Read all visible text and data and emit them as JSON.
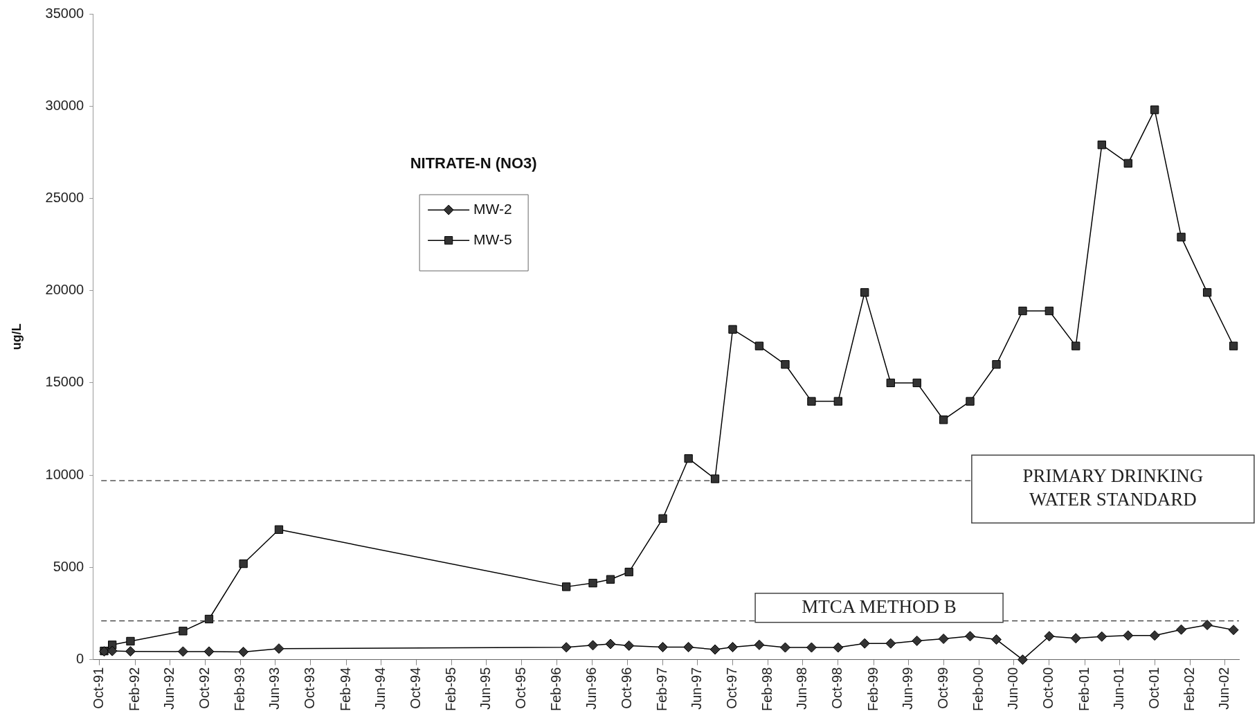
{
  "chart_data": {
    "type": "line",
    "title": "NITRATE-N (NO3)",
    "ylabel": "ug/L",
    "x": [
      "1991-10-17",
      "1991-11-14",
      "1992-01-16",
      "1992-07-16",
      "1992-10-14",
      "1993-02-10",
      "1993-06-13",
      "1996-03-04",
      "1996-06-04",
      "1996-08-04",
      "1996-10-07",
      "1997-02-01",
      "1997-05-01",
      "1997-08-01",
      "1997-10-01",
      "1998-01-01",
      "1998-04-01",
      "1998-07-01",
      "1998-10-01",
      "1999-01-01",
      "1999-04-01",
      "1999-07-01",
      "1999-10-01",
      "2000-01-01",
      "2000-04-01",
      "2000-07-01",
      "2000-10-01",
      "2001-01-01",
      "2001-04-01",
      "2001-07-01",
      "2001-10-01",
      "2002-01-01",
      "2002-04-01",
      "2002-07-01"
    ],
    "series": [
      {
        "name": "MW-2",
        "color": "#333333",
        "marker": "diamond",
        "values": [
          450,
          470,
          450,
          440,
          440,
          420,
          600,
          670,
          780,
          850,
          760,
          680,
          680,
          550,
          680,
          800,
          660,
          660,
          660,
          880,
          880,
          1020,
          1130,
          1270,
          1090,
          0,
          1270,
          1160,
          1250,
          1310,
          1310,
          1630,
          1880,
          1610
        ]
      },
      {
        "name": "MW-5",
        "color": "#333333",
        "marker": "square",
        "values": [
          470,
          800,
          1000,
          1550,
          2200,
          5200,
          7050,
          3950,
          4150,
          4350,
          4750,
          7650,
          10900,
          9800,
          17900,
          17000,
          16000,
          14000,
          14000,
          19900,
          15000,
          15000,
          13000,
          14000,
          16000,
          18900,
          18900,
          17000,
          27900,
          26900,
          29800,
          22900,
          19900,
          17000
        ]
      }
    ],
    "xlim": [
      "1991-09-08",
      "2002-07-20"
    ],
    "xticks": [
      {
        "value": "1991-10-01",
        "label": "Oct-91"
      },
      {
        "value": "1992-02-01",
        "label": "Feb-92"
      },
      {
        "value": "1992-06-01",
        "label": "Jun-92"
      },
      {
        "value": "1992-10-01",
        "label": "Oct-92"
      },
      {
        "value": "1993-02-01",
        "label": "Feb-93"
      },
      {
        "value": "1993-06-01",
        "label": "Jun-93"
      },
      {
        "value": "1993-10-01",
        "label": "Oct-93"
      },
      {
        "value": "1994-02-01",
        "label": "Feb-94"
      },
      {
        "value": "1994-06-01",
        "label": "Jun-94"
      },
      {
        "value": "1994-10-01",
        "label": "Oct-94"
      },
      {
        "value": "1995-02-01",
        "label": "Feb-95"
      },
      {
        "value": "1995-06-01",
        "label": "Jun-95"
      },
      {
        "value": "1995-10-01",
        "label": "Oct-95"
      },
      {
        "value": "1996-02-01",
        "label": "Feb-96"
      },
      {
        "value": "1996-06-01",
        "label": "Jun-96"
      },
      {
        "value": "1996-10-01",
        "label": "Oct-96"
      },
      {
        "value": "1997-02-01",
        "label": "Feb-97"
      },
      {
        "value": "1997-06-01",
        "label": "Jun-97"
      },
      {
        "value": "1997-10-01",
        "label": "Oct-97"
      },
      {
        "value": "1998-02-01",
        "label": "Feb-98"
      },
      {
        "value": "1998-06-01",
        "label": "Jun-98"
      },
      {
        "value": "1998-10-01",
        "label": "Oct-98"
      },
      {
        "value": "1999-02-01",
        "label": "Feb-99"
      },
      {
        "value": "1999-06-01",
        "label": "Jun-99"
      },
      {
        "value": "1999-10-01",
        "label": "Oct-99"
      },
      {
        "value": "2000-02-01",
        "label": "Feb-00"
      },
      {
        "value": "2000-06-01",
        "label": "Jun-00"
      },
      {
        "value": "2000-10-01",
        "label": "Oct-00"
      },
      {
        "value": "2001-02-01",
        "label": "Feb-01"
      },
      {
        "value": "2001-06-01",
        "label": "Jun-01"
      },
      {
        "value": "2001-10-01",
        "label": "Oct-01"
      },
      {
        "value": "2002-02-01",
        "label": "Feb-02"
      },
      {
        "value": "2002-06-01",
        "label": "Jun-02"
      }
    ],
    "ylim": [
      0,
      35000
    ],
    "yticks": [
      0,
      5000,
      10000,
      15000,
      20000,
      25000,
      30000,
      35000
    ],
    "ref_lines": [
      {
        "axis": "y",
        "value": 9700,
        "label": "PRIMARY DRINKING WATER STANDARD",
        "line_style": "dashed",
        "color": "#333333"
      },
      {
        "axis": "y",
        "value": 2100,
        "label": "MTCA METHOD B",
        "line_style": "dashed",
        "color": "#333333"
      }
    ],
    "legend": "top left",
    "grid": false,
    "line_style": "solid"
  }
}
